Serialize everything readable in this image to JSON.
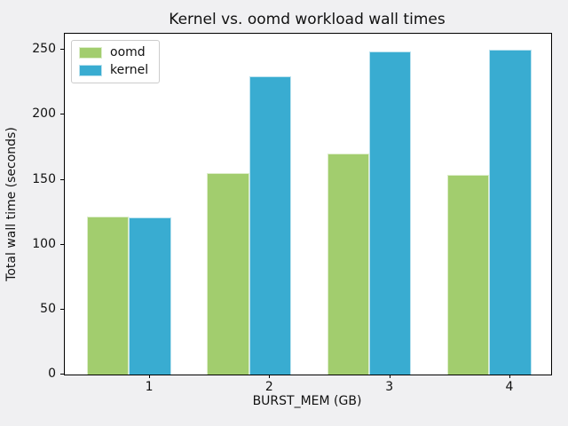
{
  "title": "Kernel vs. oomd workload wall times",
  "colors": {
    "figure_background": "#f0f0f2",
    "axes_background": "#ffffff",
    "spine": "#000000",
    "text": "#111111",
    "oomd_green": "#a2cd6e",
    "kernel_blue": "#39acd1"
  },
  "legend": {
    "position": "upper left",
    "items": [
      {
        "label": "oomd",
        "color": "#a2cd6e"
      },
      {
        "label": "kernel",
        "color": "#39acd1"
      }
    ]
  },
  "chart_data": {
    "type": "bar",
    "title": "Kernel vs. oomd workload wall times",
    "xlabel": "BURST_MEM (GB)",
    "ylabel": "Total wall time (seconds)",
    "categories": [
      1,
      2,
      3,
      4
    ],
    "series": [
      {
        "name": "oomd",
        "color": "#a2cd6e",
        "values": [
          122,
          155,
          170,
          154
        ]
      },
      {
        "name": "kernel",
        "color": "#39acd1",
        "values": [
          121,
          230,
          249,
          250
        ]
      }
    ],
    "bar_width": 0.35,
    "bar_alignment": "kernel bars centered on ticks, oomd bars adjacent on the left",
    "xticks": [
      1,
      2,
      3,
      4
    ],
    "yticks": [
      0,
      50,
      100,
      150,
      200,
      250
    ],
    "xlim": [
      0.29,
      4.34
    ],
    "ylim": [
      0,
      262.5
    ],
    "grid": false,
    "legend_position": "upper left"
  }
}
